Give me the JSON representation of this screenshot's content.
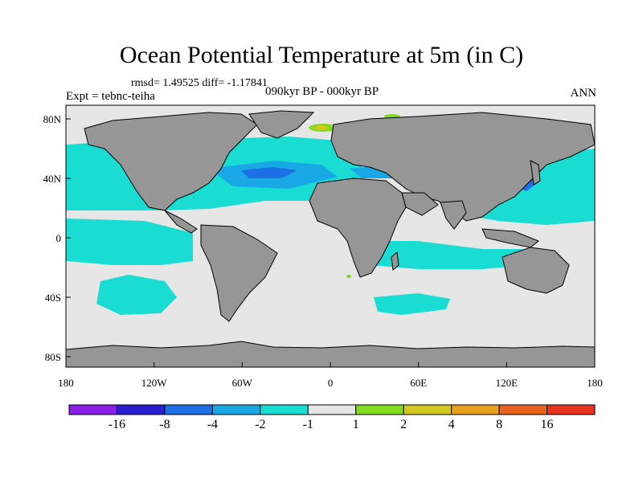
{
  "title": "Ocean Potential Temperature at 5m (in C)",
  "stats_text": "rmsd= 1.49525 diff= -1.17841",
  "experiment_text": "Expt = tebnc-teiha",
  "period_text": "090kyr BP - 000kyr BP",
  "season_text": "ANN",
  "axes": {
    "x_ticks": [
      "180",
      "120W",
      "60W",
      "0",
      "60E",
      "120E",
      "180"
    ],
    "y_ticks": [
      "80N",
      "40N",
      "0",
      "40S",
      "80S"
    ]
  },
  "colorbar": {
    "colors": [
      "#8a1ee6",
      "#2a1ed2",
      "#1e6ee6",
      "#19a8e6",
      "#19dcd2",
      "#e6e6e6",
      "#82dc1e",
      "#d2c81e",
      "#e6a01e",
      "#e6641e",
      "#e6321e"
    ],
    "labels": [
      "-16",
      "-8",
      "-4",
      "-2",
      "-1",
      "1",
      "2",
      "4",
      "8",
      "16"
    ]
  },
  "map_colors": {
    "land": "#969696",
    "ocean_neutral": "#e6e6e6",
    "cool_1": "#19dcd2",
    "cool_2": "#19a8e6",
    "cool_3": "#1e6ee6",
    "warm_1": "#82dc1e",
    "warm_2": "#d2c81e"
  }
}
